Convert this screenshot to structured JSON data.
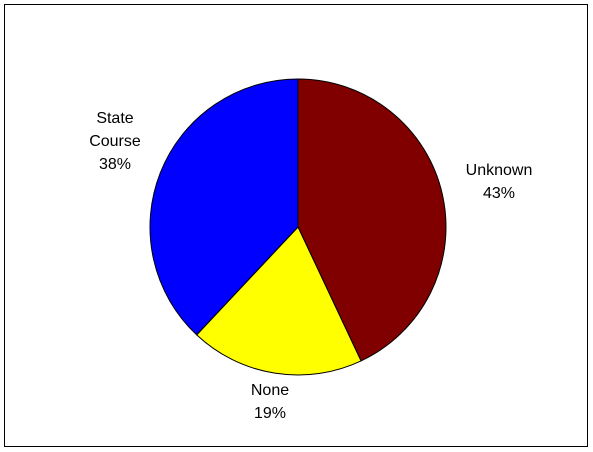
{
  "chart_data": {
    "type": "pie",
    "categories": [
      "Unknown",
      "None",
      "State Course"
    ],
    "label_lines": [
      [
        "Unknown",
        "43%"
      ],
      [
        "None",
        "19%"
      ],
      [
        "State",
        "Course",
        "38%"
      ]
    ],
    "values": [
      43,
      19,
      38
    ],
    "colors": [
      "#800000",
      "#ffff00",
      "#0000ff"
    ],
    "start": "12 o'clock",
    "direction": "clockwise",
    "legend": "none"
  }
}
